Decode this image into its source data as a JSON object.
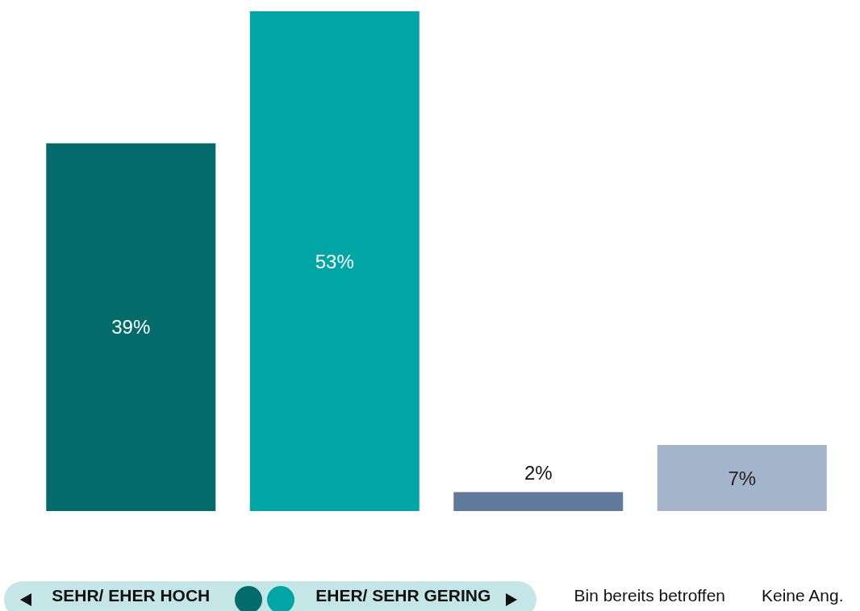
{
  "chart_data": {
    "type": "bar",
    "categories": [
      "SEHR/ EHER HOCH",
      "EHER/ SEHR GERING",
      "Bin bereits betroffen",
      "Keine Ang."
    ],
    "values": [
      39,
      53,
      2,
      7
    ],
    "colors": [
      "#046b6b",
      "#00a5a6",
      "#5f7a9a",
      "#a3b4cb"
    ],
    "value_labels": [
      "39%",
      "53%",
      "2%",
      "7%"
    ]
  }
}
